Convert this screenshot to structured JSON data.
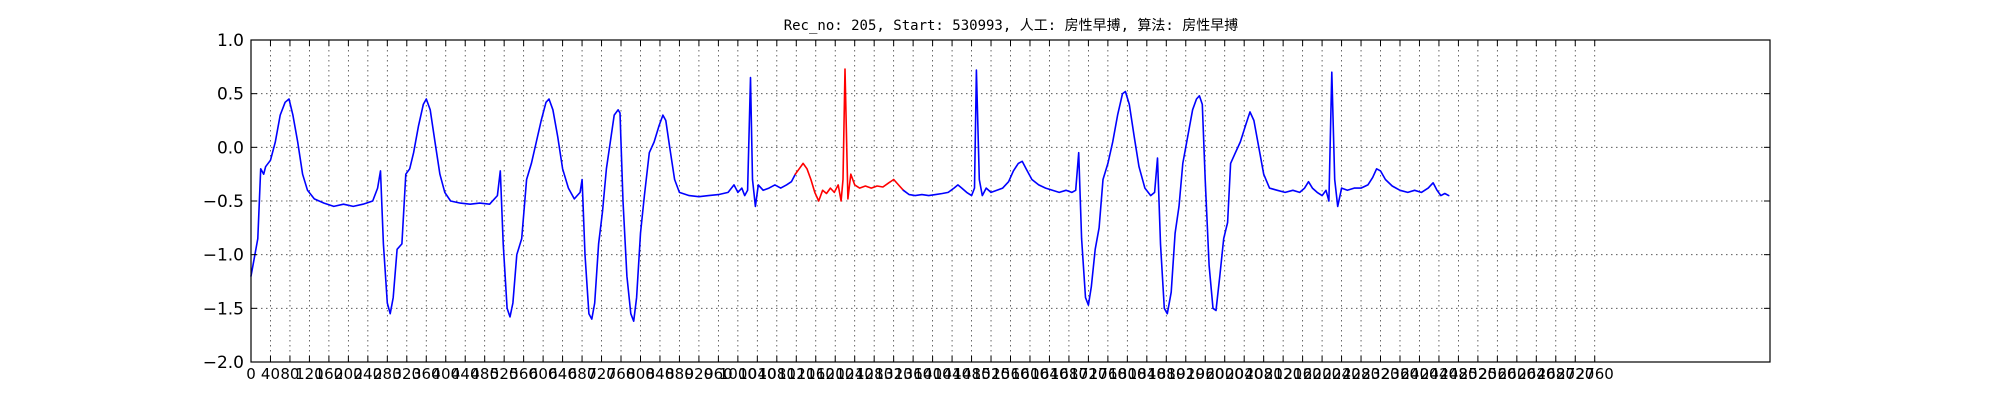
{
  "chart_data": {
    "type": "line",
    "title": "Rec_no: 205, Start: 530993, 人工: 房性早搏, 算法: 房性早搏",
    "xlabel": "",
    "ylabel": "",
    "xlim": [
      0,
      3120
    ],
    "ylim": [
      -2.0,
      1.0
    ],
    "grid": true,
    "yticks": [
      1.0,
      0.5,
      0.0,
      -0.5,
      -1.0,
      -1.5,
      -2.0
    ],
    "ytick_labels": [
      "1.0",
      "0.5",
      "0.0",
      "−0.5",
      "−1.0",
      "−1.5",
      "−2.0"
    ],
    "xtick_step": 40,
    "xticks_max": 2760,
    "xtick_labels": [
      "0",
      "40",
      "80",
      "120",
      "160",
      "200",
      "240",
      "280",
      "320",
      "360",
      "400",
      "440",
      "480",
      "520",
      "560",
      "600",
      "640",
      "680",
      "720",
      "760",
      "800",
      "840",
      "880",
      "920",
      "960",
      "1000",
      "1040",
      "1080",
      "1120",
      "1160",
      "1200",
      "1240",
      "1280",
      "1320",
      "1360",
      "1400",
      "1440",
      "1480",
      "1520",
      "1560",
      "1600",
      "1640",
      "1680",
      "1720",
      "1760",
      "1800",
      "1840",
      "1880",
      "1920",
      "1960",
      "2000",
      "2040",
      "2080",
      "2120",
      "2160",
      "2200",
      "2240",
      "2280",
      "2320",
      "2360",
      "2400",
      "2440",
      "2480",
      "2520",
      "2560",
      "2600",
      "2640",
      "2680",
      "2720",
      "2760"
    ],
    "series": [
      {
        "color": "#0000ff",
        "segment": "before",
        "points": [
          [
            0,
            -1.2
          ],
          [
            8,
            -1.0
          ],
          [
            14,
            -0.85
          ],
          [
            20,
            -0.2
          ],
          [
            26,
            -0.25
          ],
          [
            30,
            -0.18
          ],
          [
            40,
            -0.12
          ],
          [
            50,
            0.05
          ],
          [
            60,
            0.3
          ],
          [
            70,
            0.42
          ],
          [
            78,
            0.45
          ],
          [
            86,
            0.3
          ],
          [
            96,
            0.05
          ],
          [
            106,
            -0.25
          ],
          [
            116,
            -0.4
          ],
          [
            130,
            -0.48
          ],
          [
            150,
            -0.52
          ],
          [
            170,
            -0.55
          ],
          [
            190,
            -0.53
          ],
          [
            210,
            -0.55
          ],
          [
            230,
            -0.53
          ],
          [
            250,
            -0.5
          ],
          [
            260,
            -0.38
          ],
          [
            266,
            -0.22
          ],
          [
            272,
            -0.9
          ],
          [
            280,
            -1.45
          ],
          [
            286,
            -1.55
          ],
          [
            292,
            -1.4
          ],
          [
            300,
            -0.95
          ],
          [
            310,
            -0.9
          ],
          [
            318,
            -0.25
          ],
          [
            326,
            -0.2
          ],
          [
            334,
            -0.05
          ],
          [
            344,
            0.2
          ],
          [
            354,
            0.4
          ],
          [
            360,
            0.45
          ],
          [
            368,
            0.35
          ],
          [
            378,
            0.05
          ],
          [
            388,
            -0.25
          ],
          [
            398,
            -0.42
          ],
          [
            410,
            -0.5
          ],
          [
            430,
            -0.52
          ],
          [
            450,
            -0.53
          ],
          [
            470,
            -0.52
          ],
          [
            490,
            -0.53
          ],
          [
            506,
            -0.45
          ],
          [
            512,
            -0.22
          ],
          [
            518,
            -0.9
          ],
          [
            526,
            -1.5
          ],
          [
            532,
            -1.58
          ],
          [
            538,
            -1.45
          ],
          [
            546,
            -1.0
          ],
          [
            556,
            -0.85
          ],
          [
            566,
            -0.3
          ],
          [
            576,
            -0.15
          ],
          [
            586,
            0.05
          ],
          [
            596,
            0.25
          ],
          [
            606,
            0.42
          ],
          [
            612,
            0.45
          ],
          [
            620,
            0.35
          ],
          [
            630,
            0.1
          ],
          [
            640,
            -0.2
          ],
          [
            652,
            -0.38
          ],
          [
            664,
            -0.48
          ],
          [
            676,
            -0.42
          ],
          [
            680,
            -0.3
          ],
          [
            686,
            -1.0
          ],
          [
            694,
            -1.55
          ],
          [
            700,
            -1.6
          ],
          [
            706,
            -1.45
          ],
          [
            714,
            -0.9
          ],
          [
            722,
            -0.6
          ],
          [
            730,
            -0.2
          ],
          [
            738,
            0.05
          ],
          [
            746,
            0.3
          ],
          [
            754,
            0.35
          ],
          [
            758,
            0.32
          ],
          [
            764,
            -0.5
          ],
          [
            772,
            -1.2
          ],
          [
            780,
            -1.55
          ],
          [
            786,
            -1.62
          ],
          [
            792,
            -1.4
          ],
          [
            800,
            -0.8
          ],
          [
            808,
            -0.45
          ],
          [
            818,
            -0.05
          ],
          [
            828,
            0.05
          ],
          [
            838,
            0.2
          ],
          [
            846,
            0.3
          ],
          [
            852,
            0.25
          ],
          [
            860,
            0.0
          ],
          [
            870,
            -0.3
          ],
          [
            880,
            -0.42
          ],
          [
            900,
            -0.45
          ],
          [
            920,
            -0.46
          ],
          [
            940,
            -0.45
          ],
          [
            960,
            -0.44
          ],
          [
            980,
            -0.42
          ],
          [
            992,
            -0.35
          ],
          [
            1000,
            -0.42
          ],
          [
            1008,
            -0.38
          ],
          [
            1014,
            -0.45
          ],
          [
            1020,
            -0.4
          ],
          [
            1026,
            0.65
          ],
          [
            1030,
            -0.3
          ],
          [
            1036,
            -0.55
          ],
          [
            1042,
            -0.35
          ],
          [
            1052,
            -0.4
          ],
          [
            1064,
            -0.38
          ],
          [
            1076,
            -0.35
          ],
          [
            1088,
            -0.38
          ],
          [
            1100,
            -0.35
          ],
          [
            1110,
            -0.32
          ],
          [
            1118,
            -0.25
          ]
        ]
      },
      {
        "color": "#ff0000",
        "segment": "abnormal-beat",
        "points": [
          [
            1118,
            -0.25
          ],
          [
            1126,
            -0.2
          ],
          [
            1134,
            -0.15
          ],
          [
            1142,
            -0.2
          ],
          [
            1150,
            -0.3
          ],
          [
            1158,
            -0.42
          ],
          [
            1166,
            -0.5
          ],
          [
            1174,
            -0.4
          ],
          [
            1182,
            -0.43
          ],
          [
            1190,
            -0.38
          ],
          [
            1198,
            -0.42
          ],
          [
            1206,
            -0.35
          ],
          [
            1212,
            -0.5
          ],
          [
            1216,
            -0.3
          ],
          [
            1220,
            0.73
          ],
          [
            1226,
            -0.48
          ],
          [
            1232,
            -0.25
          ],
          [
            1240,
            -0.35
          ],
          [
            1250,
            -0.38
          ],
          [
            1262,
            -0.36
          ],
          [
            1274,
            -0.38
          ],
          [
            1286,
            -0.36
          ],
          [
            1298,
            -0.37
          ],
          [
            1310,
            -0.33
          ],
          [
            1320,
            -0.3
          ],
          [
            1330,
            -0.35
          ],
          [
            1340,
            -0.4
          ]
        ]
      },
      {
        "color": "#0000ff",
        "segment": "after",
        "points": [
          [
            1340,
            -0.4
          ],
          [
            1352,
            -0.44
          ],
          [
            1364,
            -0.45
          ],
          [
            1378,
            -0.44
          ],
          [
            1392,
            -0.45
          ],
          [
            1406,
            -0.44
          ],
          [
            1420,
            -0.43
          ],
          [
            1432,
            -0.42
          ],
          [
            1444,
            -0.38
          ],
          [
            1452,
            -0.35
          ],
          [
            1460,
            -0.38
          ],
          [
            1470,
            -0.42
          ],
          [
            1480,
            -0.45
          ],
          [
            1486,
            -0.38
          ],
          [
            1490,
            0.72
          ],
          [
            1496,
            -0.3
          ],
          [
            1502,
            -0.45
          ],
          [
            1510,
            -0.38
          ],
          [
            1520,
            -0.42
          ],
          [
            1532,
            -0.4
          ],
          [
            1544,
            -0.38
          ],
          [
            1556,
            -0.32
          ],
          [
            1566,
            -0.22
          ],
          [
            1576,
            -0.15
          ],
          [
            1584,
            -0.13
          ],
          [
            1592,
            -0.2
          ],
          [
            1604,
            -0.3
          ],
          [
            1618,
            -0.35
          ],
          [
            1632,
            -0.38
          ],
          [
            1646,
            -0.4
          ],
          [
            1660,
            -0.42
          ],
          [
            1674,
            -0.4
          ],
          [
            1686,
            -0.42
          ],
          [
            1694,
            -0.4
          ],
          [
            1700,
            -0.05
          ],
          [
            1706,
            -0.85
          ],
          [
            1714,
            -1.4
          ],
          [
            1720,
            -1.47
          ],
          [
            1726,
            -1.3
          ],
          [
            1734,
            -0.95
          ],
          [
            1742,
            -0.75
          ],
          [
            1750,
            -0.3
          ],
          [
            1760,
            -0.15
          ],
          [
            1770,
            0.05
          ],
          [
            1780,
            0.3
          ],
          [
            1790,
            0.5
          ],
          [
            1796,
            0.52
          ],
          [
            1804,
            0.4
          ],
          [
            1814,
            0.1
          ],
          [
            1824,
            -0.18
          ],
          [
            1836,
            -0.38
          ],
          [
            1848,
            -0.45
          ],
          [
            1856,
            -0.42
          ],
          [
            1862,
            -0.1
          ],
          [
            1868,
            -0.9
          ],
          [
            1876,
            -1.5
          ],
          [
            1882,
            -1.55
          ],
          [
            1890,
            -1.35
          ],
          [
            1898,
            -0.8
          ],
          [
            1906,
            -0.55
          ],
          [
            1914,
            -0.15
          ],
          [
            1924,
            0.1
          ],
          [
            1934,
            0.35
          ],
          [
            1942,
            0.45
          ],
          [
            1948,
            0.48
          ],
          [
            1954,
            0.4
          ],
          [
            1960,
            -0.3
          ],
          [
            1968,
            -1.1
          ],
          [
            1976,
            -1.5
          ],
          [
            1982,
            -1.52
          ],
          [
            1990,
            -1.2
          ],
          [
            1998,
            -0.85
          ],
          [
            2006,
            -0.7
          ],
          [
            2012,
            -0.15
          ],
          [
            2022,
            -0.05
          ],
          [
            2032,
            0.05
          ],
          [
            2044,
            0.22
          ],
          [
            2052,
            0.33
          ],
          [
            2060,
            0.25
          ],
          [
            2070,
            0.0
          ],
          [
            2080,
            -0.25
          ],
          [
            2092,
            -0.38
          ],
          [
            2108,
            -0.4
          ],
          [
            2124,
            -0.42
          ],
          [
            2140,
            -0.4
          ],
          [
            2154,
            -0.42
          ],
          [
            2164,
            -0.38
          ],
          [
            2172,
            -0.32
          ],
          [
            2180,
            -0.38
          ],
          [
            2190,
            -0.42
          ],
          [
            2200,
            -0.45
          ],
          [
            2208,
            -0.4
          ],
          [
            2214,
            -0.5
          ],
          [
            2220,
            0.7
          ],
          [
            2226,
            -0.3
          ],
          [
            2232,
            -0.55
          ],
          [
            2240,
            -0.38
          ],
          [
            2252,
            -0.4
          ],
          [
            2266,
            -0.38
          ],
          [
            2280,
            -0.38
          ],
          [
            2294,
            -0.35
          ],
          [
            2304,
            -0.28
          ],
          [
            2312,
            -0.2
          ],
          [
            2320,
            -0.22
          ],
          [
            2330,
            -0.3
          ],
          [
            2344,
            -0.36
          ],
          [
            2360,
            -0.4
          ],
          [
            2376,
            -0.42
          ],
          [
            2390,
            -0.4
          ],
          [
            2404,
            -0.42
          ],
          [
            2418,
            -0.38
          ],
          [
            2428,
            -0.33
          ],
          [
            2436,
            -0.4
          ],
          [
            2444,
            -0.45
          ],
          [
            2452,
            -0.43
          ],
          [
            2460,
            -0.45
          ]
        ]
      }
    ]
  }
}
